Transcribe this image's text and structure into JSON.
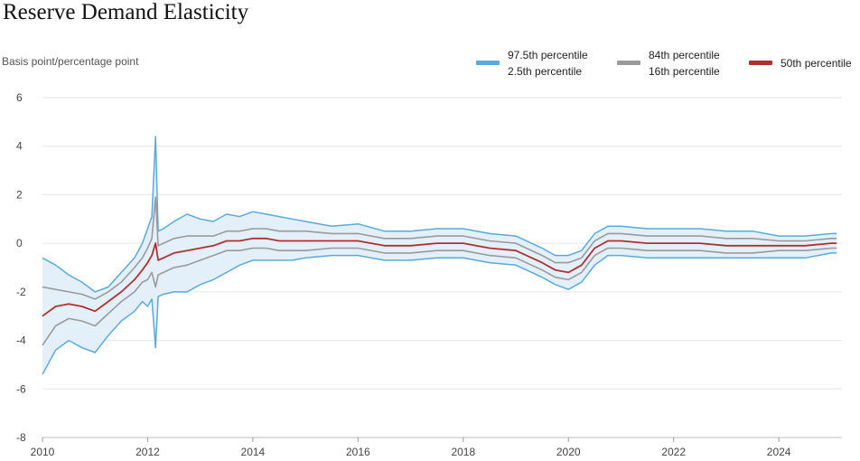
{
  "chart_data": {
    "type": "line",
    "title": "Reserve Demand Elasticity",
    "ylabel": "Basis point/percentage point",
    "xlabel": "",
    "xlim": [
      2010,
      2025.2
    ],
    "ylim": [
      -8,
      6
    ],
    "x_ticks": [
      2010,
      2012,
      2014,
      2016,
      2018,
      2020,
      2022,
      2024
    ],
    "y_ticks": [
      6,
      4,
      2,
      0,
      -2,
      -4,
      -6,
      -8
    ],
    "grid": "horizontal",
    "legend_position": "top-right",
    "colors": {
      "outer_band": "#5aa9dc",
      "outer_fill": "#e3f0fa",
      "inner_band": "#9a9a9a",
      "median": "#b22f2f",
      "grid": "#e6e6e6"
    },
    "legend": [
      {
        "labels": [
          "97.5th percentile",
          "2.5th percentile"
        ],
        "color": "#5aa9dc"
      },
      {
        "labels": [
          "84th percentile",
          "16th percentile"
        ],
        "color": "#9a9a9a"
      },
      {
        "labels": [
          "50th percentile"
        ],
        "color": "#b22f2f"
      }
    ],
    "x": [
      2010.0,
      2010.25,
      2010.5,
      2010.75,
      2011.0,
      2011.25,
      2011.5,
      2011.75,
      2011.9,
      2012.0,
      2012.08,
      2012.15,
      2012.2,
      2012.3,
      2012.5,
      2012.75,
      2013.0,
      2013.25,
      2013.5,
      2013.75,
      2014.0,
      2014.25,
      2014.5,
      2014.75,
      2015.0,
      2015.5,
      2016.0,
      2016.5,
      2017.0,
      2017.5,
      2018.0,
      2018.5,
      2019.0,
      2019.5,
      2019.75,
      2020.0,
      2020.25,
      2020.5,
      2020.75,
      2021.0,
      2021.5,
      2022.0,
      2022.5,
      2023.0,
      2023.5,
      2024.0,
      2024.5,
      2025.0,
      2025.1
    ],
    "series": [
      {
        "name": "97.5th percentile",
        "values": [
          -0.6,
          -0.9,
          -1.3,
          -1.6,
          -2.0,
          -1.8,
          -1.2,
          -0.6,
          0.0,
          0.6,
          1.1,
          4.4,
          0.5,
          0.6,
          0.9,
          1.2,
          1.0,
          0.9,
          1.2,
          1.1,
          1.3,
          1.2,
          1.1,
          1.0,
          0.9,
          0.7,
          0.8,
          0.5,
          0.5,
          0.6,
          0.6,
          0.4,
          0.3,
          -0.2,
          -0.5,
          -0.5,
          -0.3,
          0.4,
          0.7,
          0.7,
          0.6,
          0.6,
          0.6,
          0.5,
          0.5,
          0.3,
          0.3,
          0.4,
          0.4
        ]
      },
      {
        "name": "84th percentile",
        "values": [
          -1.8,
          -1.9,
          -2.0,
          -2.1,
          -2.3,
          -2.0,
          -1.6,
          -1.0,
          -0.6,
          -0.2,
          0.2,
          1.9,
          -0.1,
          0.0,
          0.2,
          0.3,
          0.3,
          0.3,
          0.5,
          0.5,
          0.6,
          0.6,
          0.5,
          0.5,
          0.5,
          0.4,
          0.4,
          0.2,
          0.2,
          0.3,
          0.3,
          0.1,
          0.0,
          -0.5,
          -0.8,
          -0.8,
          -0.6,
          0.1,
          0.4,
          0.4,
          0.3,
          0.3,
          0.3,
          0.2,
          0.2,
          0.1,
          0.1,
          0.2,
          0.2
        ]
      },
      {
        "name": "50th percentile",
        "values": [
          -3.0,
          -2.6,
          -2.5,
          -2.6,
          -2.8,
          -2.4,
          -2.0,
          -1.5,
          -1.1,
          -0.8,
          -0.5,
          0.0,
          -0.7,
          -0.6,
          -0.4,
          -0.3,
          -0.2,
          -0.1,
          0.1,
          0.1,
          0.2,
          0.2,
          0.1,
          0.1,
          0.1,
          0.1,
          0.1,
          -0.1,
          -0.1,
          0.0,
          0.0,
          -0.2,
          -0.3,
          -0.8,
          -1.1,
          -1.2,
          -0.9,
          -0.2,
          0.1,
          0.1,
          0.0,
          0.0,
          0.0,
          -0.1,
          -0.1,
          -0.1,
          -0.1,
          0.0,
          0.0
        ]
      },
      {
        "name": "16th percentile",
        "values": [
          -4.2,
          -3.4,
          -3.1,
          -3.2,
          -3.4,
          -2.9,
          -2.4,
          -2.0,
          -1.6,
          -1.5,
          -1.2,
          -1.8,
          -1.3,
          -1.2,
          -1.0,
          -0.9,
          -0.7,
          -0.5,
          -0.3,
          -0.3,
          -0.2,
          -0.2,
          -0.3,
          -0.3,
          -0.3,
          -0.2,
          -0.2,
          -0.4,
          -0.4,
          -0.3,
          -0.3,
          -0.5,
          -0.6,
          -1.1,
          -1.4,
          -1.5,
          -1.2,
          -0.5,
          -0.2,
          -0.2,
          -0.3,
          -0.3,
          -0.3,
          -0.4,
          -0.4,
          -0.3,
          -0.3,
          -0.2,
          -0.2
        ]
      },
      {
        "name": "2.5th percentile",
        "values": [
          -5.4,
          -4.4,
          -4.0,
          -4.3,
          -4.5,
          -3.8,
          -3.2,
          -2.8,
          -2.4,
          -2.6,
          -2.3,
          -4.3,
          -2.2,
          -2.1,
          -2.0,
          -2.0,
          -1.7,
          -1.5,
          -1.2,
          -0.9,
          -0.7,
          -0.7,
          -0.7,
          -0.7,
          -0.6,
          -0.5,
          -0.5,
          -0.7,
          -0.7,
          -0.6,
          -0.6,
          -0.8,
          -0.9,
          -1.4,
          -1.7,
          -1.9,
          -1.6,
          -0.9,
          -0.5,
          -0.5,
          -0.6,
          -0.6,
          -0.6,
          -0.6,
          -0.6,
          -0.6,
          -0.6,
          -0.4,
          -0.4
        ]
      }
    ]
  }
}
